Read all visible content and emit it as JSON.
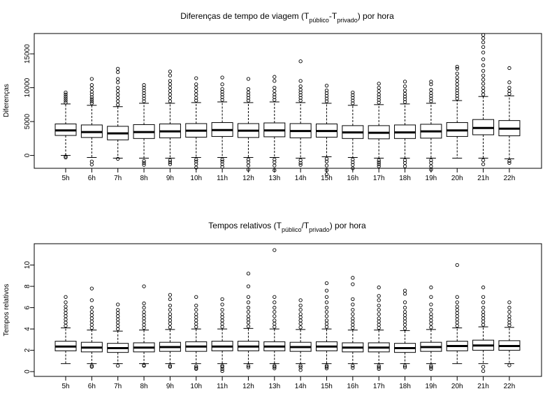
{
  "chart_data": [
    {
      "type": "boxplot",
      "title_main": "Diferenças de tempo de viagem (T",
      "title_sub1": "público",
      "title_mid": "-T",
      "title_sub2": "privado",
      "title_end": ") por hora",
      "xlabel": "",
      "ylabel": "Diferenças",
      "ylim": [
        -1900,
        18000
      ],
      "yticks": [
        0,
        5000,
        10000,
        15000
      ],
      "categories": [
        "5h",
        "6h",
        "7h",
        "8h",
        "9h",
        "10h",
        "11h",
        "12h",
        "13h",
        "14h",
        "15h",
        "16h",
        "17h",
        "18h",
        "19h",
        "20h",
        "21h",
        "22h"
      ],
      "boxes": [
        {
          "low": 0,
          "q1": 2950,
          "median": 3700,
          "q3": 4650,
          "high": 7600,
          "outliers": [
            -300,
            -150,
            7800,
            8100,
            8400,
            8700,
            9000,
            9300
          ]
        },
        {
          "low": -300,
          "q1": 2650,
          "median": 3450,
          "q3": 4500,
          "high": 7400,
          "outliers": [
            -900,
            -1350,
            7700,
            8000,
            8300,
            8600,
            9000,
            9400,
            9900,
            10400,
            11300
          ]
        },
        {
          "low": -400,
          "q1": 2300,
          "median": 3250,
          "q3": 4300,
          "high": 7200,
          "outliers": [
            -500,
            7500,
            8000,
            8500,
            9000,
            9500,
            10000,
            10800,
            11300,
            12300,
            12800
          ]
        },
        {
          "low": -400,
          "q1": 2500,
          "median": 3450,
          "q3": 4550,
          "high": 7700,
          "outliers": [
            -800,
            -1100,
            -1400,
            8000,
            8400,
            8800,
            9200,
            9600,
            10000,
            10400
          ]
        },
        {
          "low": -400,
          "q1": 2600,
          "median": 3550,
          "q3": 4650,
          "high": 7700,
          "outliers": [
            -700,
            -1000,
            -1300,
            8000,
            8500,
            9000,
            9500,
            10000,
            10500,
            11000,
            11800,
            12400
          ]
        },
        {
          "low": -300,
          "q1": 2700,
          "median": 3650,
          "q3": 4700,
          "high": 7800,
          "outliers": [
            -600,
            -900,
            -1300,
            -1800,
            8100,
            8500,
            9000,
            9500,
            10000,
            10500,
            11400
          ]
        },
        {
          "low": -300,
          "q1": 2800,
          "median": 3750,
          "q3": 4850,
          "high": 7900,
          "outliers": [
            -600,
            -900,
            -1300,
            -1700,
            8200,
            8600,
            9000,
            9400,
            9800,
            10500,
            11500
          ]
        },
        {
          "low": -300,
          "q1": 2650,
          "median": 3650,
          "q3": 4700,
          "high": 7800,
          "outliers": [
            -600,
            -1000,
            -1500,
            -2100,
            8100,
            8500,
            8900,
            9300,
            9800,
            11300
          ]
        },
        {
          "low": -300,
          "q1": 2750,
          "median": 3700,
          "q3": 4800,
          "high": 7900,
          "outliers": [
            -600,
            -1000,
            -1500,
            -2200,
            8200,
            8600,
            9000,
            9500,
            10000,
            11000,
            11600
          ]
        },
        {
          "low": -400,
          "q1": 2600,
          "median": 3600,
          "q3": 4700,
          "high": 7800,
          "outliers": [
            -700,
            -1100,
            -1400,
            8100,
            8500,
            8900,
            9300,
            9700,
            10200,
            11000,
            13900
          ]
        },
        {
          "low": -200,
          "q1": 2700,
          "median": 3600,
          "q3": 4650,
          "high": 7700,
          "outliers": [
            -500,
            -900,
            -1500,
            -2200,
            -2800,
            8000,
            8400,
            8800,
            9200,
            9600,
            10300
          ]
        },
        {
          "low": -300,
          "q1": 2500,
          "median": 3400,
          "q3": 4400,
          "high": 7400,
          "outliers": [
            -600,
            -1000,
            -1400,
            -1900,
            7700,
            8100,
            8500,
            8900,
            9300
          ]
        },
        {
          "low": -400,
          "q1": 2450,
          "median": 3350,
          "q3": 4400,
          "high": 7500,
          "outliers": [
            -700,
            -1000,
            -1300,
            -1600,
            7800,
            8200,
            8600,
            9000,
            9500,
            10000,
            10600
          ]
        },
        {
          "low": -400,
          "q1": 2500,
          "median": 3400,
          "q3": 4500,
          "high": 7600,
          "outliers": [
            -700,
            -1100,
            -1600,
            7900,
            8300,
            8700,
            9100,
            9600,
            10200,
            10900
          ]
        },
        {
          "low": -400,
          "q1": 2550,
          "median": 3550,
          "q3": 4600,
          "high": 7700,
          "outliers": [
            -700,
            -1100,
            -1600,
            -2100,
            8000,
            8400,
            8800,
            9200,
            9700,
            10500,
            10900
          ]
        },
        {
          "low": -400,
          "q1": 2800,
          "median": 3700,
          "q3": 4850,
          "high": 8100,
          "outliers": [
            8400,
            8800,
            9200,
            9600,
            10000,
            10500,
            11000,
            11500,
            12100,
            12800,
            13100
          ]
        },
        {
          "low": -400,
          "q1": 3050,
          "median": 4050,
          "q3": 5300,
          "high": 8700,
          "outliers": [
            -700,
            -1300,
            9000,
            9500,
            10000,
            10600,
            11200,
            11800,
            12500,
            13300,
            14200,
            15200,
            16000,
            16700,
            17300,
            17800
          ]
        },
        {
          "low": -500,
          "q1": 2900,
          "median": 3950,
          "q3": 5150,
          "high": 8800,
          "outliers": [
            -800,
            -1100,
            9100,
            9500,
            10000,
            10800,
            12900
          ]
        }
      ]
    },
    {
      "type": "boxplot",
      "title_main": "Tempos relativos (T",
      "title_sub1": "público",
      "title_mid": "/T",
      "title_sub2": "privado",
      "title_end": ") por hora",
      "xlabel": "",
      "ylabel": "Tempos relativos",
      "ylim": [
        -0.45,
        12
      ],
      "yticks": [
        0,
        2,
        4,
        6,
        8,
        10
      ],
      "categories": [
        "5h",
        "6h",
        "7h",
        "8h",
        "9h",
        "10h",
        "11h",
        "12h",
        "13h",
        "14h",
        "15h",
        "16h",
        "17h",
        "18h",
        "19h",
        "20h",
        "21h",
        "22h"
      ],
      "boxes": [
        {
          "low": 0.75,
          "q1": 1.95,
          "median": 2.35,
          "q3": 2.85,
          "high": 4.1,
          "outliers": [
            4.3,
            4.6,
            4.9,
            5.2,
            5.5,
            5.8,
            6.1,
            6.5,
            7.0
          ]
        },
        {
          "low": 0.75,
          "q1": 1.85,
          "median": 2.25,
          "q3": 2.75,
          "high": 3.9,
          "outliers": [
            0.55,
            0.45,
            4.1,
            4.4,
            4.7,
            5.0,
            5.3,
            5.6,
            6.0,
            6.7,
            7.8
          ]
        },
        {
          "low": 0.75,
          "q1": 1.8,
          "median": 2.2,
          "q3": 2.65,
          "high": 3.8,
          "outliers": [
            0.55,
            4.0,
            4.3,
            4.6,
            4.9,
            5.2,
            5.5,
            5.8,
            6.3
          ]
        },
        {
          "low": 0.75,
          "q1": 1.85,
          "median": 2.25,
          "q3": 2.7,
          "high": 3.9,
          "outliers": [
            0.55,
            0.6,
            4.1,
            4.4,
            4.7,
            5.0,
            5.3,
            5.6,
            6.0,
            6.4,
            8.0
          ]
        },
        {
          "low": 0.75,
          "q1": 1.9,
          "median": 2.3,
          "q3": 2.75,
          "high": 3.95,
          "outliers": [
            0.55,
            0.45,
            4.15,
            4.5,
            4.8,
            5.1,
            5.4,
            5.8,
            6.2,
            6.8,
            7.2
          ]
        },
        {
          "low": 0.75,
          "q1": 1.9,
          "median": 2.35,
          "q3": 2.8,
          "high": 4.0,
          "outliers": [
            0.5,
            0.35,
            0.25,
            4.2,
            4.5,
            4.8,
            5.1,
            5.4,
            5.8,
            6.2,
            7.0
          ]
        },
        {
          "low": 0.75,
          "q1": 1.95,
          "median": 2.35,
          "q3": 2.85,
          "high": 4.0,
          "outliers": [
            0.55,
            0.45,
            0.25,
            0.05,
            4.2,
            4.5,
            4.8,
            5.1,
            5.4,
            5.8,
            6.3,
            6.8
          ]
        },
        {
          "low": 0.75,
          "q1": 1.95,
          "median": 2.35,
          "q3": 2.85,
          "high": 4.05,
          "outliers": [
            0.55,
            0.4,
            4.25,
            4.6,
            4.9,
            5.2,
            5.6,
            6.0,
            6.5,
            7.0,
            8.0,
            9.2
          ]
        },
        {
          "low": 0.75,
          "q1": 1.95,
          "median": 2.35,
          "q3": 2.8,
          "high": 4.0,
          "outliers": [
            0.55,
            0.45,
            0.3,
            4.2,
            4.5,
            4.8,
            5.2,
            5.6,
            6.0,
            6.5,
            7.0,
            11.4
          ]
        },
        {
          "low": 0.75,
          "q1": 1.9,
          "median": 2.3,
          "q3": 2.75,
          "high": 3.95,
          "outliers": [
            0.55,
            0.4,
            0.15,
            4.15,
            4.5,
            4.8,
            5.1,
            5.4,
            5.8,
            6.2,
            6.7
          ]
        },
        {
          "low": 0.75,
          "q1": 1.95,
          "median": 2.35,
          "q3": 2.8,
          "high": 4.0,
          "outliers": [
            0.55,
            0.45,
            0.3,
            4.2,
            4.5,
            4.8,
            5.2,
            5.6,
            6.0,
            6.5,
            7.0,
            7.6,
            8.3
          ]
        },
        {
          "low": 0.75,
          "q1": 1.85,
          "median": 2.25,
          "q3": 2.7,
          "high": 3.9,
          "outliers": [
            0.55,
            0.35,
            4.1,
            4.4,
            4.7,
            5.0,
            5.4,
            5.8,
            6.3,
            6.8,
            8.2,
            8.8
          ]
        },
        {
          "low": 0.75,
          "q1": 1.85,
          "median": 2.25,
          "q3": 2.7,
          "high": 3.9,
          "outliers": [
            0.55,
            0.4,
            0.25,
            4.1,
            4.4,
            4.7,
            5.0,
            5.4,
            5.8,
            6.2,
            6.7,
            7.1,
            7.9
          ]
        },
        {
          "low": 0.75,
          "q1": 1.8,
          "median": 2.2,
          "q3": 2.65,
          "high": 3.85,
          "outliers": [
            0.55,
            0.4,
            4.05,
            4.4,
            4.7,
            5.0,
            5.3,
            5.6,
            6.0,
            6.5,
            7.3,
            7.6
          ]
        },
        {
          "low": 0.75,
          "q1": 1.9,
          "median": 2.3,
          "q3": 2.75,
          "high": 3.95,
          "outliers": [
            0.55,
            0.4,
            0.25,
            4.15,
            4.5,
            4.8,
            5.1,
            5.4,
            5.8,
            6.3,
            7.0,
            7.9
          ]
        },
        {
          "low": 0.75,
          "q1": 1.95,
          "median": 2.4,
          "q3": 2.85,
          "high": 4.1,
          "outliers": [
            4.3,
            4.6,
            4.9,
            5.2,
            5.5,
            5.8,
            6.1,
            6.5,
            7.0,
            10.0
          ]
        },
        {
          "low": 0.75,
          "q1": 2.0,
          "median": 2.45,
          "q3": 2.95,
          "high": 4.2,
          "outliers": [
            0.45,
            0.05,
            4.4,
            4.7,
            5.0,
            5.3,
            5.6,
            6.0,
            6.5,
            7.0,
            7.9
          ]
        },
        {
          "low": 0.75,
          "q1": 2.0,
          "median": 2.4,
          "q3": 2.9,
          "high": 4.15,
          "outliers": [
            0.6,
            4.35,
            4.6,
            4.9,
            5.2,
            5.6,
            6.0,
            6.5
          ]
        }
      ]
    }
  ]
}
